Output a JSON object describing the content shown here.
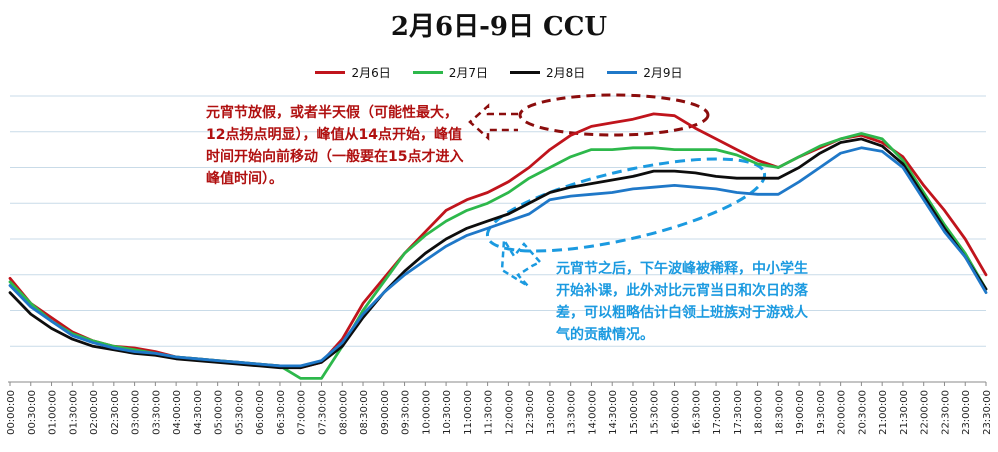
{
  "chart_data": {
    "type": "line",
    "title": "2月6日-9日 CCU",
    "legend_position": "top",
    "grid": true,
    "x_labels": [
      "00:00:00",
      "00:30:00",
      "01:00:00",
      "01:30:00",
      "02:00:00",
      "02:30:00",
      "03:00:00",
      "03:30:00",
      "04:00:00",
      "04:30:00",
      "05:00:00",
      "05:30:00",
      "06:00:00",
      "06:30:00",
      "07:00:00",
      "07:30:00",
      "08:00:00",
      "08:30:00",
      "09:00:00",
      "09:30:00",
      "10:00:00",
      "10:30:00",
      "11:00:00",
      "11:30:00",
      "12:00:00",
      "12:30:00",
      "13:00:00",
      "13:30:00",
      "14:00:00",
      "14:30:00",
      "15:00:00",
      "15:30:00",
      "16:00:00",
      "16:30:00",
      "17:00:00",
      "17:30:00",
      "18:00:00",
      "18:30:00",
      "19:00:00",
      "19:30:00",
      "20:00:00",
      "20:30:00",
      "21:00:00",
      "21:30:00",
      "22:00:00",
      "22:30:00",
      "23:00:00",
      "23:30:00"
    ],
    "ylim": [
      0,
      8
    ],
    "series": [
      {
        "name": "2月6日",
        "color": "#c0141c",
        "values": [
          2.9,
          2.2,
          1.8,
          1.4,
          1.15,
          1.0,
          0.95,
          0.85,
          0.7,
          0.65,
          0.6,
          0.55,
          0.5,
          0.45,
          0.4,
          0.55,
          1.2,
          2.2,
          2.9,
          3.6,
          4.2,
          4.8,
          5.1,
          5.3,
          5.6,
          6.0,
          6.5,
          6.9,
          7.15,
          7.25,
          7.35,
          7.5,
          7.45,
          7.1,
          6.8,
          6.5,
          6.2,
          6.0,
          6.3,
          6.55,
          6.8,
          6.9,
          6.7,
          6.3,
          5.5,
          4.8,
          4.0,
          3.0
        ]
      },
      {
        "name": "2月7日",
        "color": "#2db84b",
        "values": [
          2.8,
          2.2,
          1.7,
          1.35,
          1.15,
          1.0,
          0.9,
          0.8,
          0.7,
          0.65,
          0.6,
          0.55,
          0.5,
          0.45,
          0.1,
          0.1,
          1.0,
          2.0,
          2.8,
          3.6,
          4.1,
          4.5,
          4.8,
          5.0,
          5.3,
          5.7,
          6.0,
          6.3,
          6.5,
          6.5,
          6.55,
          6.55,
          6.5,
          6.5,
          6.5,
          6.35,
          6.1,
          6.0,
          6.3,
          6.6,
          6.8,
          6.95,
          6.8,
          6.2,
          5.3,
          4.4,
          3.6,
          2.6
        ]
      },
      {
        "name": "2月8日",
        "color": "#0d0d0d",
        "values": [
          2.5,
          1.9,
          1.5,
          1.2,
          1.0,
          0.9,
          0.8,
          0.75,
          0.65,
          0.6,
          0.55,
          0.5,
          0.45,
          0.4,
          0.4,
          0.55,
          1.0,
          1.8,
          2.5,
          3.1,
          3.6,
          4.0,
          4.3,
          4.5,
          4.7,
          5.0,
          5.3,
          5.45,
          5.55,
          5.65,
          5.75,
          5.9,
          5.9,
          5.85,
          5.75,
          5.7,
          5.7,
          5.7,
          6.0,
          6.4,
          6.7,
          6.8,
          6.6,
          6.1,
          5.2,
          4.3,
          3.5,
          2.6
        ]
      },
      {
        "name": "2月9日",
        "color": "#1f78c8",
        "values": [
          2.7,
          2.1,
          1.7,
          1.3,
          1.1,
          0.95,
          0.85,
          0.8,
          0.7,
          0.65,
          0.6,
          0.55,
          0.5,
          0.45,
          0.45,
          0.6,
          1.1,
          1.9,
          2.5,
          3.0,
          3.4,
          3.8,
          4.1,
          4.3,
          4.5,
          4.7,
          5.1,
          5.2,
          5.25,
          5.3,
          5.4,
          5.45,
          5.5,
          5.45,
          5.4,
          5.3,
          5.25,
          5.25,
          5.6,
          6.0,
          6.4,
          6.55,
          6.45,
          6.0,
          5.1,
          4.2,
          3.5,
          2.5
        ]
      }
    ],
    "annotations": [
      {
        "id": "red",
        "color": "#b01010",
        "text": "元宵节放假，或者半天假（可能性最大，12点拐点明显），峰值从14点开始，峰值时间开始向前移动（一般要在15点才进入峰值时间）。"
      },
      {
        "id": "blue",
        "color": "#1b9ae0",
        "text": "元宵节之后，下午波峰被稀释，中小学生开始补课，此外对比元宵当日和次日的落差，可以粗略估计白领上班族对于游戏人气的贡献情况。"
      }
    ]
  }
}
